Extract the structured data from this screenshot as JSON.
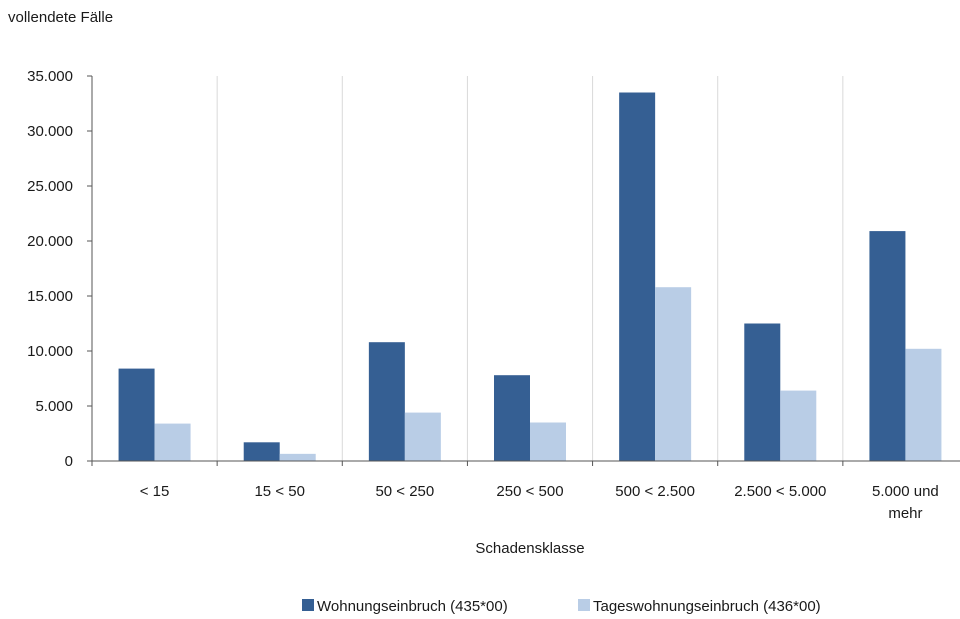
{
  "chart_data": {
    "type": "bar",
    "ylabel": "vollendete Fälle",
    "xlabel": "Schadensklasse",
    "categories": [
      [
        "< 15"
      ],
      [
        "15 < 50"
      ],
      [
        "50 < 250"
      ],
      [
        "250 < 500"
      ],
      [
        "500 < 2.500"
      ],
      [
        "2.500 < 5.000"
      ],
      [
        "5.000 und",
        "mehr"
      ]
    ],
    "series": [
      {
        "name": "Wohnungseinbruch (435*00)",
        "color": "#355f93",
        "values": [
          8400,
          1700,
          10800,
          7800,
          33500,
          12500,
          20900
        ]
      },
      {
        "name": "Tageswohnungseinbruch (436*00)",
        "color": "#b9cde6",
        "values": [
          3400,
          650,
          4400,
          3500,
          15800,
          6400,
          10200
        ]
      }
    ],
    "ylim": [
      0,
      35000
    ],
    "yticks": [
      0,
      5000,
      10000,
      15000,
      20000,
      25000,
      30000,
      35000
    ],
    "ytick_labels": [
      "0",
      "5.000",
      "10.000",
      "15.000",
      "20.000",
      "25.000",
      "30.000",
      "35.000"
    ],
    "grid": "vertical",
    "legend_position": "bottom"
  }
}
